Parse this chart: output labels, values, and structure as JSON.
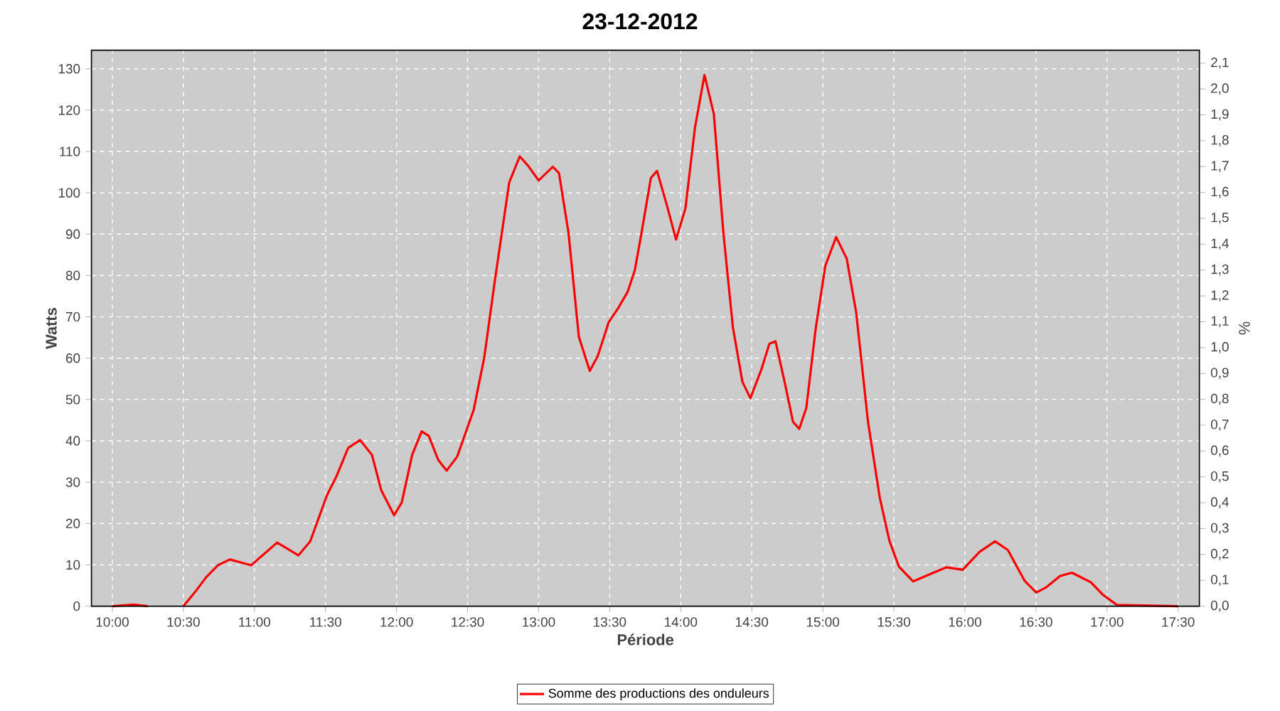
{
  "chart_data": {
    "type": "line",
    "title": "23-12-2012",
    "xlabel": "Période",
    "ylabel": "Watts",
    "y2label": "%",
    "x": [
      10.0,
      10.15,
      10.25,
      10.37,
      10.5,
      10.593,
      10.66,
      10.743,
      10.827,
      10.977,
      11.16,
      11.31,
      11.393,
      11.51,
      11.577,
      11.66,
      11.743,
      11.827,
      11.893,
      11.983,
      12.037,
      12.11,
      12.177,
      12.227,
      12.293,
      12.353,
      12.427,
      12.543,
      12.617,
      12.693,
      12.793,
      12.867,
      12.927,
      13.0,
      13.1,
      13.143,
      13.21,
      13.283,
      13.36,
      13.417,
      13.493,
      13.56,
      13.627,
      13.677,
      13.716,
      13.79,
      13.833,
      13.9,
      13.967,
      14.033,
      14.1,
      14.167,
      14.233,
      14.3,
      14.367,
      14.434,
      14.49,
      14.567,
      14.624,
      14.667,
      14.734,
      14.79,
      14.834,
      14.884,
      14.951,
      15.018,
      15.094,
      15.168,
      15.235,
      15.318,
      15.401,
      15.468,
      15.535,
      15.635,
      15.752,
      15.868,
      15.985,
      16.102,
      16.212,
      16.302,
      16.419,
      16.502,
      16.569,
      16.669,
      16.753,
      16.886,
      16.97,
      17.07,
      17.5
    ],
    "series": [
      {
        "name": "Somme des productions des onduleurs",
        "color": "#ff0000",
        "values": [
          0,
          0.4,
          0,
          null,
          0,
          3.9,
          7,
          9.9,
          11.3,
          9.9,
          15.4,
          12.3,
          15.7,
          26.8,
          31.4,
          38.3,
          40.2,
          36.6,
          28,
          22,
          25.1,
          36.6,
          42.3,
          41.2,
          35.4,
          32.8,
          36.2,
          47.5,
          60.1,
          79,
          102.5,
          108.8,
          106.5,
          103,
          106.3,
          104.8,
          90.4,
          65.2,
          56.9,
          60.6,
          68.7,
          72.1,
          76.1,
          81.3,
          88.7,
          103.6,
          105.3,
          97.3,
          88.7,
          96.2,
          115.7,
          128.5,
          119.1,
          90.4,
          67.5,
          54.3,
          50.3,
          57.2,
          63.5,
          64.1,
          53.8,
          44.6,
          42.9,
          48,
          67.5,
          82.4,
          89.3,
          84.1,
          71,
          44.6,
          26.2,
          15.9,
          9.6,
          6,
          7.7,
          9.4,
          8.8,
          13.1,
          15.7,
          13.6,
          6.2,
          3.3,
          4.5,
          7.3,
          8.1,
          5.8,
          2.8,
          0.3,
          0
        ]
      }
    ],
    "xlim": [
      9.853,
      17.65
    ],
    "xticks": [
      {
        "value": 10.0,
        "label": "10:00"
      },
      {
        "value": 10.5,
        "label": "10:30"
      },
      {
        "value": 11.0,
        "label": "11:00"
      },
      {
        "value": 11.5,
        "label": "11:30"
      },
      {
        "value": 12.0,
        "label": "12:00"
      },
      {
        "value": 12.5,
        "label": "12:30"
      },
      {
        "value": 13.0,
        "label": "13:00"
      },
      {
        "value": 13.5,
        "label": "13:30"
      },
      {
        "value": 14.0,
        "label": "14:00"
      },
      {
        "value": 14.5,
        "label": "14:30"
      },
      {
        "value": 15.0,
        "label": "15:00"
      },
      {
        "value": 15.5,
        "label": "15:30"
      },
      {
        "value": 16.0,
        "label": "16:00"
      },
      {
        "value": 16.5,
        "label": "16:30"
      },
      {
        "value": 17.0,
        "label": "17:00"
      },
      {
        "value": 17.5,
        "label": "17:30"
      }
    ],
    "ylim": [
      0,
      134.5
    ],
    "yticks": [
      0,
      10,
      20,
      30,
      40,
      50,
      60,
      70,
      80,
      90,
      100,
      110,
      120,
      130
    ],
    "y2lim": [
      0,
      2.15
    ],
    "y2ticks": [
      {
        "value": 0.0,
        "label": "0,0"
      },
      {
        "value": 0.1,
        "label": "0,1"
      },
      {
        "value": 0.2,
        "label": "0,2"
      },
      {
        "value": 0.3,
        "label": "0,3"
      },
      {
        "value": 0.4,
        "label": "0,4"
      },
      {
        "value": 0.5,
        "label": "0,5"
      },
      {
        "value": 0.6,
        "label": "0,6"
      },
      {
        "value": 0.7,
        "label": "0,7"
      },
      {
        "value": 0.8,
        "label": "0,8"
      },
      {
        "value": 0.9,
        "label": "0,9"
      },
      {
        "value": 1.0,
        "label": "1,0"
      },
      {
        "value": 1.1,
        "label": "1,1"
      },
      {
        "value": 1.2,
        "label": "1,2"
      },
      {
        "value": 1.3,
        "label": "1,3"
      },
      {
        "value": 1.4,
        "label": "1,4"
      },
      {
        "value": 1.5,
        "label": "1,5"
      },
      {
        "value": 1.6,
        "label": "1,6"
      },
      {
        "value": 1.7,
        "label": "1,7"
      },
      {
        "value": 1.8,
        "label": "1,8"
      },
      {
        "value": 1.9,
        "label": "1,9"
      },
      {
        "value": 2.0,
        "label": "2,0"
      },
      {
        "value": 2.1,
        "label": "2,1"
      }
    ],
    "grid": true,
    "legend": "bottom",
    "marker": "none",
    "line_style": "solid"
  }
}
